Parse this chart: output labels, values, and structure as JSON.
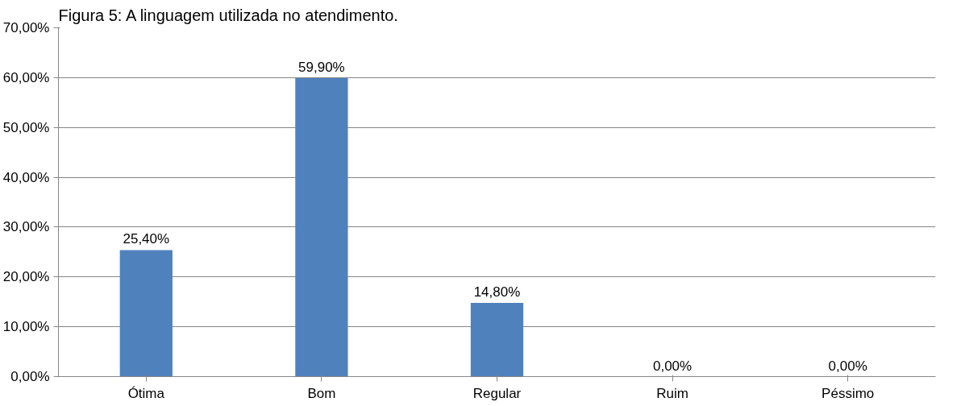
{
  "chart_data": {
    "type": "bar",
    "title": "Figura 5: A linguagem utilizada no atendimento.",
    "categories": [
      "Ótima",
      "Bom",
      "Regular",
      "Ruim",
      "Péssimo"
    ],
    "values": [
      25.4,
      59.9,
      14.8,
      0,
      0
    ],
    "value_labels": [
      "25,40%",
      "59,90%",
      "14,80%",
      "0,00%",
      "0,00%"
    ],
    "color": "#4f81bd",
    "ylim": [
      0,
      70
    ],
    "yticks": [
      {
        "value": 0,
        "label": "0,00%"
      },
      {
        "value": 10,
        "label": "10,00%"
      },
      {
        "value": 20,
        "label": "20,00%"
      },
      {
        "value": 30,
        "label": "30,00%"
      },
      {
        "value": 40,
        "label": "40,00%"
      },
      {
        "value": 50,
        "label": "50,00%"
      },
      {
        "value": 60,
        "label": "60,00%"
      },
      {
        "value": 70,
        "label": "70,00%"
      }
    ],
    "grid": "y"
  }
}
